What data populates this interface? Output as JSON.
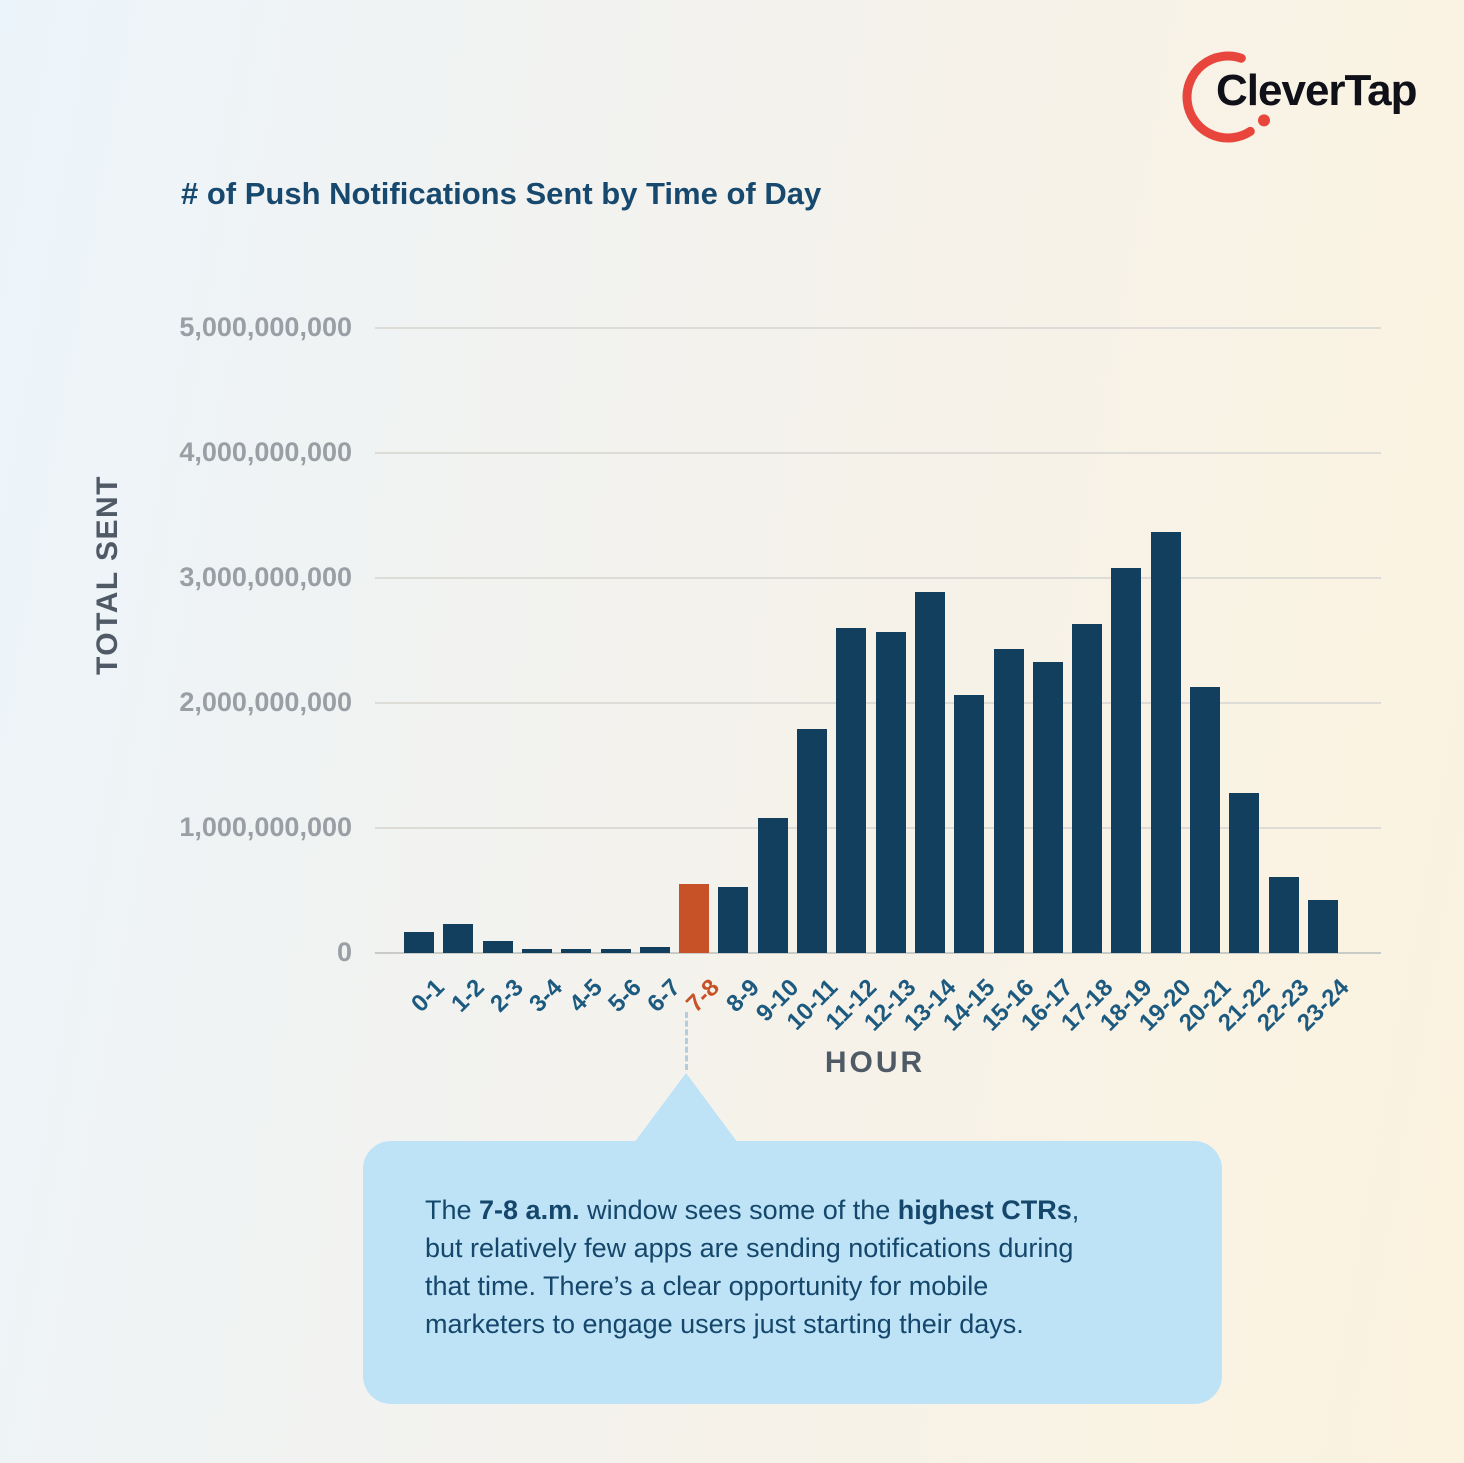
{
  "logo": {
    "text": "CleverTap",
    "arc_color": "#e8463c"
  },
  "title": "# of Push Notifications Sent by Time of Day",
  "chart_data": {
    "type": "bar",
    "title": "# of Push Notifications Sent by Time of Day",
    "xlabel": "HOUR",
    "ylabel": "TOTAL SENT",
    "categories": [
      "0-1",
      "1-2",
      "2-3",
      "3-4",
      "4-5",
      "5-6",
      "6-7",
      "7-8",
      "8-9",
      "9-10",
      "10-11",
      "11-12",
      "12-13",
      "13-14",
      "14-15",
      "15-16",
      "16-17",
      "17-18",
      "18-19",
      "19-20",
      "20-21",
      "21-22",
      "22-23",
      "23-24"
    ],
    "values": [
      170000000,
      230000000,
      95000000,
      30000000,
      30000000,
      30000000,
      45000000,
      550000000,
      530000000,
      1080000000,
      1790000000,
      2600000000,
      2570000000,
      2890000000,
      2060000000,
      2430000000,
      2330000000,
      2630000000,
      3080000000,
      3370000000,
      2130000000,
      1280000000,
      610000000,
      420000000
    ],
    "ylim": [
      0,
      5000000000
    ],
    "yticks": [
      {
        "value": 5000000000,
        "label": "5,000,000,000"
      },
      {
        "value": 4000000000,
        "label": "4,000,000,000"
      },
      {
        "value": 3000000000,
        "label": "3,000,000,000"
      },
      {
        "value": 2000000000,
        "label": "2,000,000,000"
      },
      {
        "value": 1000000000,
        "label": "1,000,000,000"
      },
      {
        "value": 0,
        "label": "0"
      }
    ],
    "grid": true,
    "legend": "none",
    "highlight_index": 7,
    "bar_color": "#123f5e",
    "highlight_color": "#c75227",
    "gridline_color": "#dddcd6",
    "baseline_color": "#c9cbc6"
  },
  "callout": {
    "lines": [
      [
        {
          "text": "The ",
          "bold": false
        },
        {
          "text": "7-8 a.m.",
          "bold": true
        },
        {
          "text": " window sees some of the ",
          "bold": false
        },
        {
          "text": "highest CTRs",
          "bold": true
        },
        {
          "text": ",",
          "bold": false
        }
      ],
      [
        {
          "text": "but relatively few apps are sending notifications during",
          "bold": false
        }
      ],
      [
        {
          "text": "that time. There’s a clear opportunity for mobile",
          "bold": false
        }
      ],
      [
        {
          "text": "marketers to engage users just starting their days.",
          "bold": false
        }
      ]
    ]
  }
}
